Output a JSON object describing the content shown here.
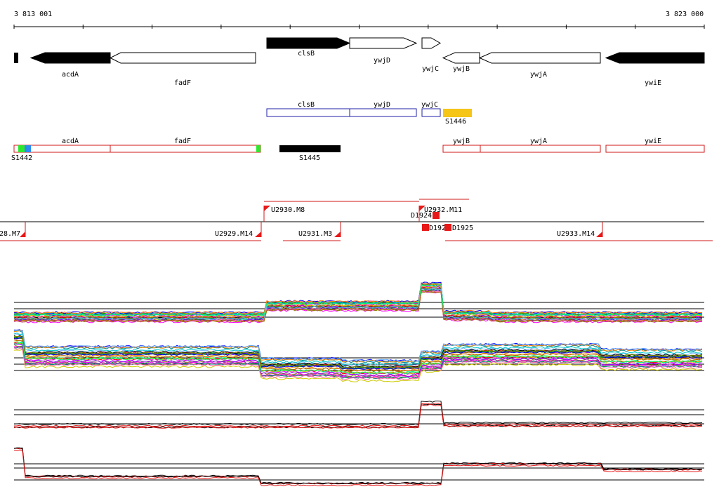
{
  "ruler": {
    "start_label": "3 813 001",
    "end_label": "3 823 000"
  },
  "genes": [
    {
      "label": "acdA",
      "strand": "minus",
      "style": "filled"
    },
    {
      "label": "fadF",
      "strand": "minus",
      "style": "outline"
    },
    {
      "label": "clsB",
      "strand": "plus",
      "style": "filled"
    },
    {
      "label": "ywjD",
      "strand": "plus",
      "style": "outline"
    },
    {
      "label": "ywjC",
      "strand": "plus",
      "style": "outline"
    },
    {
      "label": "ywjB",
      "strand": "minus",
      "style": "outline"
    },
    {
      "label": "ywjA",
      "strand": "minus",
      "style": "outline"
    },
    {
      "label": "ywiE",
      "strand": "minus",
      "style": "filled"
    }
  ],
  "plus_transcripts": {
    "color": "#1f1fa8",
    "items": [
      {
        "label": "clsB"
      },
      {
        "label": "ywjD"
      },
      {
        "label": "ywjC"
      }
    ],
    "feature": {
      "label": "S1446",
      "color": "#f5c518"
    }
  },
  "minus_transcripts": {
    "color": "#d01818",
    "items": [
      {
        "label": "acdA"
      },
      {
        "label": "fadF"
      },
      {
        "label": "ywjB"
      },
      {
        "label": "ywjA"
      },
      {
        "label": "ywiE"
      }
    ],
    "features": [
      {
        "label": "S1442"
      },
      {
        "label": "S1445"
      }
    ]
  },
  "segments": {
    "marker_color": "#e81818",
    "labels": [
      {
        "text": "28.M7"
      },
      {
        "text": "U2929.M14"
      },
      {
        "text": "U2930.M8"
      },
      {
        "text": "U2931.M3"
      },
      {
        "text": "U2932.M11"
      },
      {
        "text": "D1924"
      },
      {
        "text": "D192"
      },
      {
        "text": "D1925"
      },
      {
        "text": "U2933.M14"
      }
    ]
  },
  "expression_colors": [
    "#ff0000",
    "#00aa00",
    "#0000ff",
    "#ff00ff",
    "#00cccc",
    "#cccc00",
    "#ff8800",
    "#8800ff",
    "#008888",
    "#888800",
    "#ff66aa",
    "#66aaff",
    "#aa6600",
    "#00ff88",
    "#444444"
  ]
}
